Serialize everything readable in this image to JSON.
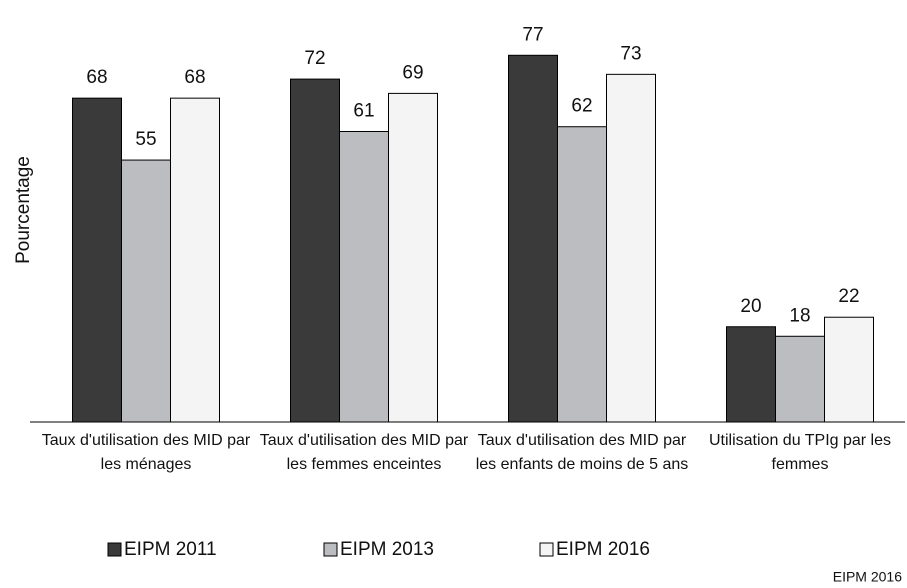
{
  "chart_data": {
    "type": "bar",
    "y_label": "Pourcentage",
    "categories": [
      "Taux d'utilisation des MID par les ménages",
      "Taux d'utilisation des MID par les femmes enceintes",
      "Taux d'utilisation des MID par les enfants de moins de 5 ans",
      "Utilisation du TPIg par les femmes"
    ],
    "series": [
      {
        "name": "EIPM 2011",
        "color": "#3a3a3a",
        "values": [
          68,
          72,
          77,
          20
        ]
      },
      {
        "name": "EIPM 2013",
        "color": "#bcbdc0",
        "values": [
          55,
          61,
          62,
          18
        ]
      },
      {
        "name": "EIPM 2016",
        "color": "#f4f4f4",
        "values": [
          68,
          69,
          73,
          22
        ]
      }
    ],
    "ylim": [
      0,
      80
    ],
    "legend": "bottom",
    "source": "EIPM 2016"
  }
}
